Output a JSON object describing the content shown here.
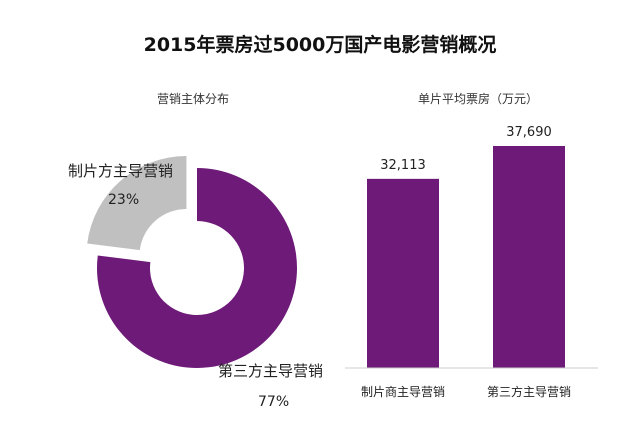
{
  "title": "2015年票房过5000万国产电影营销概况",
  "chart_data": [
    {
      "type": "pie",
      "title": "营销主体分布",
      "slices": [
        {
          "label": "制片方主导营销",
          "value": 23,
          "value_label": "23%",
          "color": "#c0c0c0"
        },
        {
          "label": "第三方主导营销",
          "value": 77,
          "value_label": "77%",
          "color": "#6e1a79"
        }
      ]
    },
    {
      "type": "bar",
      "title": "单片平均票房（万元）",
      "categories": [
        "制片商主导营销",
        "第三方主导营销"
      ],
      "values": [
        32113,
        37690
      ],
      "value_labels": [
        "32,113",
        "37,690"
      ],
      "color": "#6e1a79"
    }
  ]
}
